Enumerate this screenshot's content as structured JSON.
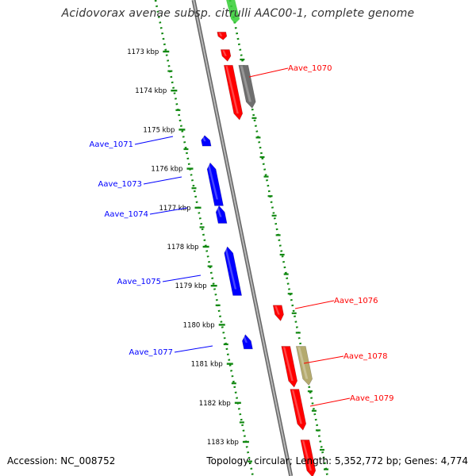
{
  "title": "Acidovorax avenae subsp. citrulli AAC00-1, complete genome",
  "footer": {
    "accession": "Accession: NC_008752",
    "summary": "Topology: circular; Length: 5,352,772 bp; Genes: 4,774"
  },
  "colors": {
    "forward_gene": "#ff0000",
    "reverse_gene": "#0000ff",
    "rna_gene": "#6e6e6e",
    "other_feature": "#b4aa6e",
    "top_feature_green": "#33cc33",
    "backbone": "#888888",
    "ruler": "#118811"
  },
  "ruler_labels": [
    "1173 kbp",
    "1174 kbp",
    "1175 kbp",
    "1176 kbp",
    "1177 kbp",
    "1178 kbp",
    "1179 kbp",
    "1180 kbp",
    "1181 kbp",
    "1182 kbp",
    "1183 kbp"
  ],
  "genes": [
    {
      "strand": "forward",
      "type": "cds",
      "start_kbp": 1172.5,
      "end_kbp": 1172.7,
      "label": ""
    },
    {
      "strand": "forward",
      "type": "cds",
      "start_kbp": 1172.95,
      "end_kbp": 1173.25,
      "label": ""
    },
    {
      "strand": "forward",
      "type": "cds",
      "start_kbp": 1173.35,
      "end_kbp": 1174.75,
      "label": "Aave_1070"
    },
    {
      "strand": "forward",
      "type": "rna",
      "start_kbp": 1173.35,
      "end_kbp": 1174.45,
      "label": ""
    },
    {
      "strand": "reverse",
      "type": "cds",
      "start_kbp": 1175.15,
      "end_kbp": 1175.42,
      "label": "Aave_1071"
    },
    {
      "strand": "reverse",
      "type": "cds",
      "start_kbp": 1175.85,
      "end_kbp": 1176.95,
      "label": "Aave_1073"
    },
    {
      "strand": "reverse",
      "type": "cds",
      "start_kbp": 1176.95,
      "end_kbp": 1177.4,
      "label": "Aave_1074"
    },
    {
      "strand": "reverse",
      "type": "cds",
      "start_kbp": 1178.0,
      "end_kbp": 1179.25,
      "label": "Aave_1075"
    },
    {
      "strand": "forward",
      "type": "cds",
      "start_kbp": 1179.5,
      "end_kbp": 1179.9,
      "label": "Aave_1076"
    },
    {
      "strand": "reverse",
      "type": "cds",
      "start_kbp": 1180.25,
      "end_kbp": 1180.62,
      "label": "Aave_1077"
    },
    {
      "strand": "forward",
      "type": "cds",
      "start_kbp": 1180.55,
      "end_kbp": 1181.6,
      "label": "Aave_1078"
    },
    {
      "strand": "forward",
      "type": "other",
      "start_kbp": 1180.55,
      "end_kbp": 1181.55,
      "label": ""
    },
    {
      "strand": "forward",
      "type": "cds",
      "start_kbp": 1181.65,
      "end_kbp": 1182.7,
      "label": "Aave_1079"
    },
    {
      "strand": "forward",
      "type": "cds",
      "start_kbp": 1182.95,
      "end_kbp": 1183.9,
      "label": ""
    }
  ]
}
